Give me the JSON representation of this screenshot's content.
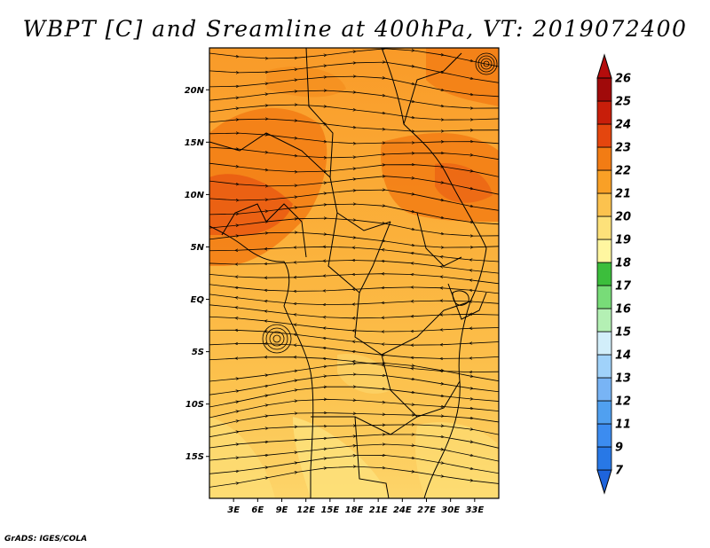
{
  "title": "WBPT [C] and Sreamline at 400hPa, VT: 2019072400",
  "credit": "GrADS: IGES/COLA",
  "map": {
    "lon_range": [
      0,
      36
    ],
    "lat_range": [
      -19,
      24
    ],
    "lon_ticks": [
      "3E",
      "6E",
      "9E",
      "12E",
      "15E",
      "18E",
      "21E",
      "24E",
      "27E",
      "30E",
      "33E"
    ],
    "lat_ticks": [
      "20N",
      "15N",
      "10N",
      "5N",
      "EQ",
      "5S",
      "10S",
      "15S"
    ]
  },
  "colorbar": {
    "levels": [
      "7",
      "9",
      "11",
      "12",
      "13",
      "14",
      "15",
      "16",
      "17",
      "18",
      "19",
      "20",
      "21",
      "22",
      "23",
      "24",
      "25",
      "26"
    ],
    "colors": [
      "#1e64dc",
      "#2878e6",
      "#3c8cf0",
      "#50a0f0",
      "#78b4f5",
      "#a0d2fa",
      "#d2eefa",
      "#b4f0b4",
      "#78dc78",
      "#3cbe3c",
      "#fff6a0",
      "#fde17a",
      "#fcc24e",
      "#f9a026",
      "#f27c14",
      "#e4460e",
      "#c81e0a",
      "#a00a0a",
      "#b40c0c"
    ]
  }
}
